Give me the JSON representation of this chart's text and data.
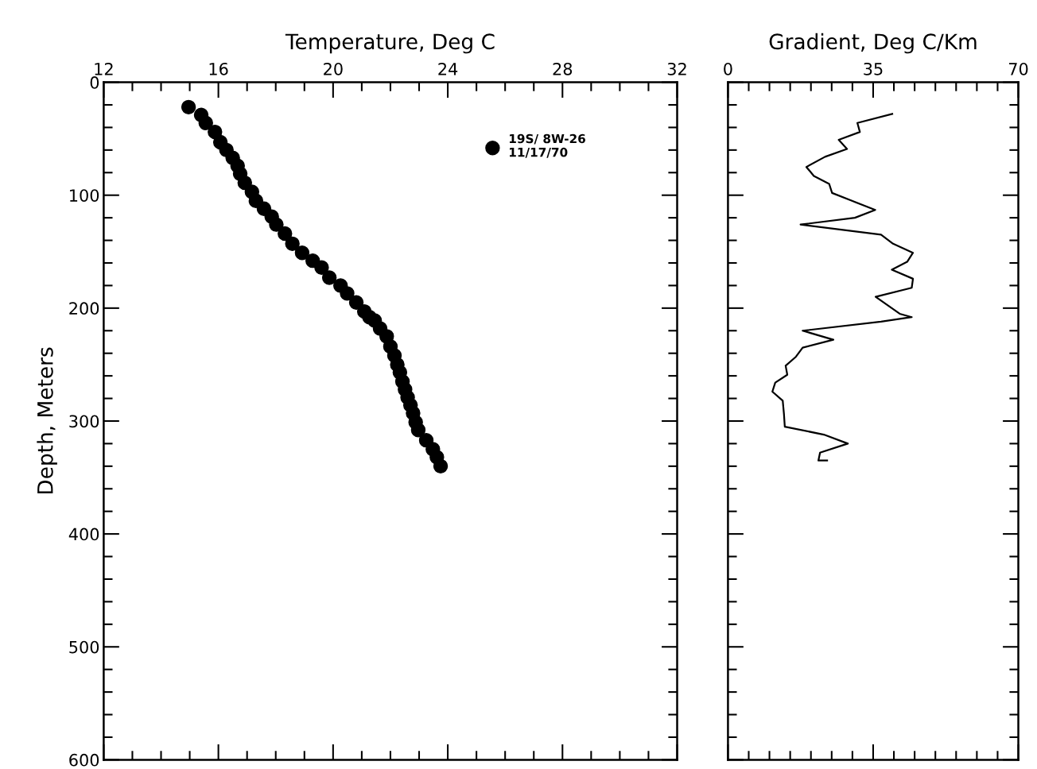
{
  "chart_data": [
    {
      "type": "scatter",
      "xlabel": "Temperature, Deg C",
      "ylabel": "Depth, Meters",
      "xlim": [
        12,
        32
      ],
      "ylim": [
        600,
        0
      ],
      "xticks": [
        12,
        {
          "value": 13,
          "label": null
        },
        {
          "value": 14,
          "label": null
        },
        {
          "value": 15,
          "label": null
        },
        16,
        {
          "value": 17,
          "label": null
        },
        {
          "value": 18,
          "label": null
        },
        {
          "value": 19,
          "label": null
        },
        20,
        {
          "value": 21,
          "label": null
        },
        {
          "value": 22,
          "label": null
        },
        {
          "value": 23,
          "label": null
        },
        24,
        {
          "value": 25,
          "label": null
        },
        {
          "value": 26,
          "label": null
        },
        {
          "value": 27,
          "label": null
        },
        28,
        {
          "value": 29,
          "label": null
        },
        {
          "value": 30,
          "label": null
        },
        {
          "value": 31,
          "label": null
        },
        32
      ],
      "yticks": [
        0,
        {
          "value": 20,
          "label": null
        },
        {
          "value": 40,
          "label": null
        },
        {
          "value": 60,
          "label": null
        },
        {
          "value": 80,
          "label": null
        },
        100,
        {
          "value": 120,
          "label": null
        },
        {
          "value": 140,
          "label": null
        },
        {
          "value": 160,
          "label": null
        },
        {
          "value": 180,
          "label": null
        },
        200,
        {
          "value": 220,
          "label": null
        },
        {
          "value": 240,
          "label": null
        },
        {
          "value": 260,
          "label": null
        },
        {
          "value": 280,
          "label": null
        },
        300,
        {
          "value": 320,
          "label": null
        },
        {
          "value": 340,
          "label": null
        },
        {
          "value": 360,
          "label": null
        },
        {
          "value": 380,
          "label": null
        },
        400,
        {
          "value": 420,
          "label": null
        },
        {
          "value": 440,
          "label": null
        },
        {
          "value": 460,
          "label": null
        },
        {
          "value": 480,
          "label": null
        },
        500,
        {
          "value": 520,
          "label": null
        },
        {
          "value": 540,
          "label": null
        },
        {
          "value": 560,
          "label": null
        },
        {
          "value": 580,
          "label": null
        },
        600
      ],
      "marker": "circle",
      "legend": "top right",
      "grid": false,
      "series": [
        {
          "name": "19S/ 8W-26\n11/17/70",
          "color": "#000000",
          "x": [
            14.96,
            15.4,
            15.56,
            15.88,
            16.07,
            16.28,
            16.5,
            16.67,
            16.76,
            16.92,
            17.17,
            17.31,
            17.59,
            17.86,
            18.02,
            18.32,
            18.58,
            18.92,
            19.29,
            19.6,
            19.87,
            20.26,
            20.49,
            20.81,
            21.09,
            21.27,
            21.45,
            21.64,
            21.87,
            22.0,
            22.14,
            22.24,
            22.33,
            22.42,
            22.51,
            22.6,
            22.7,
            22.79,
            22.88,
            22.97,
            23.25,
            23.48,
            23.62,
            23.75
          ],
          "values": [
            22,
            29,
            36,
            44,
            53,
            60,
            67,
            74,
            81,
            89,
            97,
            105,
            112,
            119,
            126,
            134,
            143,
            151,
            158,
            164,
            173,
            180,
            187,
            195,
            203,
            208,
            211,
            218,
            225,
            234,
            242,
            250,
            257,
            265,
            272,
            279,
            286,
            293,
            301,
            308,
            317,
            325,
            332,
            340
          ]
        }
      ]
    },
    {
      "type": "line",
      "xlabel": "Gradient, Deg C/Km",
      "xlim": [
        0,
        70
      ],
      "ylim": [
        600,
        0
      ],
      "tick_labels": "x",
      "xticks": [
        0,
        {
          "value": 5,
          "label": null
        },
        {
          "value": 10,
          "label": null
        },
        {
          "value": 15,
          "label": null
        },
        {
          "value": 20,
          "label": null
        },
        {
          "value": 25,
          "label": null
        },
        {
          "value": 30,
          "label": null
        },
        35,
        {
          "value": 40,
          "label": null
        },
        {
          "value": 45,
          "label": null
        },
        {
          "value": 50,
          "label": null
        },
        {
          "value": 55,
          "label": null
        },
        {
          "value": 60,
          "label": null
        },
        {
          "value": 65,
          "label": null
        },
        70
      ],
      "yticks": [
        0,
        {
          "value": 20,
          "label": null
        },
        {
          "value": 40,
          "label": null
        },
        {
          "value": 60,
          "label": null
        },
        {
          "value": 80,
          "label": null
        },
        100,
        {
          "value": 120,
          "label": null
        },
        {
          "value": 140,
          "label": null
        },
        {
          "value": 160,
          "label": null
        },
        {
          "value": 180,
          "label": null
        },
        200,
        {
          "value": 220,
          "label": null
        },
        {
          "value": 240,
          "label": null
        },
        {
          "value": 260,
          "label": null
        },
        {
          "value": 280,
          "label": null
        },
        300,
        {
          "value": 320,
          "label": null
        },
        {
          "value": 340,
          "label": null
        },
        {
          "value": 360,
          "label": null
        },
        {
          "value": 380,
          "label": null
        },
        400,
        {
          "value": 420,
          "label": null
        },
        {
          "value": 440,
          "label": null
        },
        {
          "value": 460,
          "label": null
        },
        {
          "value": 480,
          "label": null
        },
        500,
        {
          "value": 520,
          "label": null
        },
        {
          "value": 540,
          "label": null
        },
        {
          "value": 560,
          "label": null
        },
        {
          "value": 580,
          "label": null
        },
        600
      ],
      "marker": "none",
      "line_style": "solid",
      "grid": false,
      "series": [
        {
          "color": "#000000",
          "x": [
            39.6,
            31.2,
            31.8,
            26.7,
            28.7,
            23.4,
            18.9,
            20.7,
            24.4,
            25.1,
            29.9,
            35.5,
            30.6,
            17.5,
            36.9,
            39.8,
            44.6,
            43.2,
            39.5,
            44.6,
            44.3,
            35.6,
            41.4,
            44.3,
            36.9,
            18.0,
            25.4,
            18.0,
            16.4,
            13.9,
            14.3,
            11.4,
            10.7,
            13.2,
            13.5,
            13.7,
            23.1,
            28.9,
            22.2,
            21.8,
            23.9
          ],
          "values": [
            28,
            36,
            44,
            51,
            59,
            66,
            75,
            83,
            90,
            98,
            105,
            113,
            120,
            126,
            135,
            143,
            151,
            159,
            166,
            174,
            182,
            190,
            205,
            208,
            212,
            220,
            228,
            235,
            243,
            251,
            259,
            266,
            274,
            282,
            294,
            305,
            312,
            320,
            328,
            335,
            335
          ]
        }
      ]
    }
  ]
}
